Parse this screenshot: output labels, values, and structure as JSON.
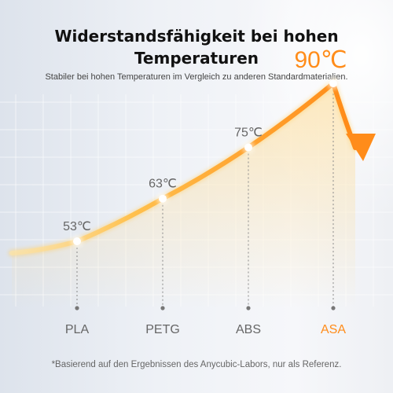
{
  "title": "Widerstandsfähigkeit bei hohen\nTemperaturen",
  "subtitle": "Stabiler bei hohen Temperaturen im Vergleich zu anderen Standardmaterialien.",
  "footnote": "*Basierend auf den Ergebnissen des Anycubic-Labors, nur als Referenz.",
  "colors": {
    "accent": "#ff8c1a",
    "line": "#ffb347",
    "text": "#666666",
    "highlight_text": "#ff8c1a"
  },
  "chart_data": {
    "type": "line",
    "categories": [
      "PLA",
      "PETG",
      "ABS",
      "ASA"
    ],
    "values": [
      53,
      63,
      75,
      90
    ],
    "value_labels": [
      "53℃",
      "63℃",
      "75℃",
      "90℃"
    ],
    "unit": "℃",
    "highlight": "ASA",
    "grid": true,
    "legend": "none"
  }
}
